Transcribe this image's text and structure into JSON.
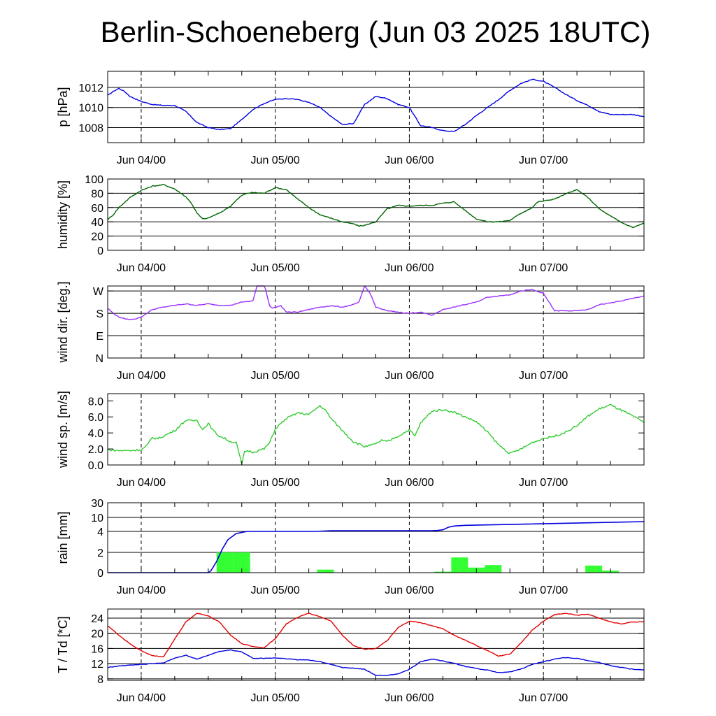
{
  "title": "Berlin-Schoeneberg (Jun 03 2025 18UTC)",
  "x_tick_labels": [
    "Jun 04/00",
    "Jun 05/00",
    "Jun 06/00",
    "Jun 07/00"
  ],
  "chart_data": [
    {
      "type": "line",
      "ylabel": "p [hPa]",
      "xlim": [
        0,
        96
      ],
      "ylim": [
        1006.5,
        1013.6
      ],
      "yticks": [
        1008,
        1010,
        1012
      ],
      "ytick_labels": [
        "1008",
        "1010",
        "1012"
      ],
      "grid": true,
      "color": "#0000e0",
      "noise": 0.08,
      "series": [
        {
          "x": [
            0,
            1,
            2,
            3,
            4,
            6,
            8,
            10,
            12,
            14,
            16,
            18,
            20,
            22,
            24,
            26,
            28,
            30,
            32,
            34,
            36,
            38,
            40,
            42,
            44,
            46,
            48,
            50,
            52,
            54,
            56,
            58,
            60,
            62,
            64,
            66,
            68,
            70,
            72,
            74,
            76,
            78,
            80,
            82,
            84,
            86,
            88,
            90,
            92,
            94,
            96
          ],
          "y": [
            1011.2,
            1011.6,
            1011.9,
            1011.6,
            1011.1,
            1010.6,
            1010.3,
            1010.2,
            1010.2,
            1009.6,
            1008.5,
            1008.0,
            1007.8,
            1007.9,
            1008.8,
            1009.8,
            1010.4,
            1010.8,
            1010.9,
            1010.8,
            1010.5,
            1010.0,
            1009.1,
            1008.3,
            1008.4,
            1010.3,
            1011.1,
            1010.9,
            1010.3,
            1010.0,
            1008.2,
            1008.0,
            1007.7,
            1007.6,
            1008.3,
            1009.2,
            1010.0,
            1010.8,
            1011.7,
            1012.4,
            1012.8,
            1012.6,
            1012.0,
            1011.3,
            1010.7,
            1010.2,
            1009.6,
            1009.3,
            1009.3,
            1009.3,
            1009.1
          ]
        }
      ]
    },
    {
      "type": "line",
      "ylabel": "humidity [%]",
      "xlim": [
        0,
        96
      ],
      "ylim": [
        0,
        100
      ],
      "yticks": [
        0,
        20,
        40,
        60,
        80,
        100
      ],
      "ytick_labels": [
        "0",
        "20",
        "40",
        "60",
        "80",
        "100"
      ],
      "grid": true,
      "color": "#006400",
      "noise": 1.2,
      "series": [
        {
          "x": [
            0,
            1,
            2,
            4,
            6,
            8,
            10,
            12,
            14,
            15,
            16,
            17,
            18,
            19,
            20,
            22,
            23,
            24,
            25,
            26,
            28,
            29,
            30,
            32,
            34,
            36,
            38,
            40,
            42,
            44,
            45,
            46,
            48,
            50,
            52,
            54,
            56,
            58,
            60,
            62,
            64,
            66,
            68,
            70,
            72,
            74,
            76,
            77,
            78,
            80,
            82,
            84,
            86,
            88,
            90,
            92,
            94,
            96
          ],
          "y": [
            43,
            50,
            60,
            74,
            84,
            90,
            92,
            86,
            75,
            66,
            52,
            44,
            45,
            49,
            52,
            62,
            70,
            77,
            80,
            81,
            80,
            84,
            88,
            85,
            72,
            60,
            50,
            45,
            40,
            37,
            34,
            35,
            40,
            58,
            63,
            62,
            63,
            63,
            66,
            68,
            56,
            44,
            40,
            40,
            42,
            52,
            60,
            68,
            69,
            72,
            79,
            85,
            74,
            58,
            48,
            39,
            32,
            38
          ]
        }
      ]
    },
    {
      "type": "line",
      "ylabel": "wind dir. [deg.]",
      "xlim": [
        0,
        96
      ],
      "ylim": [
        0,
        290
      ],
      "yticks": [
        0,
        90,
        180,
        270
      ],
      "ytick_labels": [
        "N",
        "E",
        "S",
        "W"
      ],
      "grid": true,
      "color": "#9b30ff",
      "noise": 3,
      "series": [
        {
          "x": [
            0,
            1,
            2,
            3,
            4,
            5,
            6,
            7,
            8,
            10,
            12,
            14,
            16,
            18,
            20,
            22,
            24,
            26,
            27,
            28,
            29,
            29.5,
            30,
            31,
            32,
            34,
            36,
            38,
            40,
            42,
            44,
            45,
            46,
            47,
            48,
            50,
            52,
            54,
            56,
            58,
            60,
            62,
            64,
            66,
            68,
            70,
            72,
            74,
            76,
            78,
            80,
            82,
            84,
            86,
            88,
            90,
            92,
            94,
            96
          ],
          "y": [
            200,
            180,
            165,
            158,
            155,
            158,
            165,
            180,
            195,
            205,
            212,
            218,
            212,
            218,
            212,
            212,
            225,
            230,
            310,
            300,
            210,
            200,
            205,
            210,
            185,
            185,
            195,
            205,
            210,
            205,
            215,
            225,
            290,
            260,
            205,
            190,
            185,
            180,
            185,
            172,
            195,
            205,
            215,
            225,
            245,
            250,
            255,
            270,
            275,
            260,
            190,
            190,
            190,
            195,
            215,
            222,
            230,
            240,
            250
          ]
        }
      ]
    },
    {
      "type": "line",
      "ylabel": "wind sp. [m/s]",
      "xlim": [
        0,
        96
      ],
      "ylim": [
        0,
        8.9
      ],
      "yticks": [
        0,
        2,
        4,
        6,
        8
      ],
      "ytick_labels": [
        "0.0",
        "2.0",
        "4.0",
        "6.0",
        "8.0"
      ],
      "grid": false,
      "color": "#33cc33",
      "noise": 0.25,
      "series": [
        {
          "x": [
            0,
            2,
            4,
            6,
            7,
            8,
            9,
            10,
            12,
            14,
            15,
            16,
            17,
            18,
            19,
            20,
            21,
            22,
            23,
            24,
            24.5,
            25,
            26,
            28,
            29,
            30,
            31,
            32,
            34,
            36,
            38,
            39,
            40,
            42,
            44,
            46,
            48,
            49,
            50,
            52,
            54,
            55,
            56,
            58,
            60,
            62,
            64,
            66,
            68,
            70,
            72,
            74,
            76,
            78,
            80,
            82,
            84,
            86,
            88,
            90,
            92,
            94,
            96
          ],
          "y": [
            1.9,
            1.8,
            1.8,
            1.9,
            2.4,
            3.4,
            3.3,
            3.6,
            4.3,
            5.6,
            5.5,
            5.6,
            4.4,
            5.2,
            4.2,
            3.6,
            3.3,
            2.9,
            2.8,
            0.1,
            1.6,
            1.8,
            1.6,
            2.0,
            2.8,
            4.5,
            5.2,
            5.8,
            6.5,
            6.3,
            7.4,
            6.8,
            5.8,
            4.3,
            2.9,
            2.3,
            2.6,
            3.1,
            2.9,
            3.6,
            4.4,
            3.6,
            5.2,
            6.7,
            6.9,
            6.6,
            6.0,
            5.4,
            4.1,
            2.5,
            1.4,
            2.0,
            2.8,
            3.3,
            3.6,
            4.1,
            4.9,
            6.1,
            7.0,
            7.5,
            6.8,
            6.1,
            5.3
          ]
        }
      ]
    },
    {
      "type": "bar",
      "ylabel": "rain [mm]",
      "xlim": [
        0,
        96
      ],
      "scale": "piecewise",
      "yticks": [
        0,
        2,
        4,
        10,
        30
      ],
      "ytick_labels": [
        "0",
        "2",
        "4",
        "10",
        "30"
      ],
      "grid": true,
      "bar_color": "#33ff33",
      "line_color": "#0000e0",
      "bars": {
        "x_start": [
          19.5,
          22.5,
          37.5,
          58.5,
          61.5,
          64.5,
          67.5,
          85.5,
          88.5
        ],
        "x_end": [
          22.5,
          25.5,
          40.5,
          61.5,
          64.5,
          67.5,
          70.5,
          88.5,
          91.5
        ],
        "values": [
          2.0,
          2.0,
          0.3,
          0.1,
          1.5,
          0.5,
          0.75,
          0.7,
          0.2
        ]
      },
      "cumulative": {
        "x": [
          0,
          18,
          18.5,
          19.5,
          20.5,
          21.5,
          23,
          25,
          26,
          37,
          40,
          58,
          59,
          60,
          61,
          62,
          64,
          96
        ],
        "y": [
          0,
          0,
          0.2,
          1.1,
          2.3,
          3.2,
          3.8,
          4.0,
          4.0,
          4.0,
          4.3,
          4.3,
          4.4,
          4.7,
          5.8,
          6.3,
          6.6,
          8.2
        ]
      }
    },
    {
      "type": "line",
      "ylabel": "T / Td [*C]",
      "xlim": [
        0,
        96
      ],
      "ylim": [
        7.6,
        26.4
      ],
      "yticks": [
        8,
        12,
        16,
        20,
        24
      ],
      "ytick_labels": [
        "8",
        "12",
        "16",
        "20",
        "24"
      ],
      "grid": true,
      "noise": 0.15,
      "series": [
        {
          "color": "#e00000",
          "x": [
            0,
            2,
            4,
            6,
            8,
            10,
            12,
            14,
            16,
            18,
            20,
            22,
            24,
            26,
            28,
            30,
            32,
            34,
            36,
            38,
            40,
            42,
            44,
            46,
            48,
            50,
            52,
            54,
            56,
            58,
            60,
            62,
            64,
            66,
            68,
            70,
            72,
            74,
            76,
            78,
            80,
            82,
            84,
            86,
            88,
            90,
            92,
            94,
            96
          ],
          "y": [
            22.0,
            19.5,
            17.2,
            15.4,
            14.1,
            13.8,
            18.5,
            23.0,
            25.3,
            24.6,
            23.0,
            19.5,
            17.3,
            16.5,
            16.2,
            18.6,
            22.5,
            24.2,
            25.3,
            24.4,
            23.2,
            19.5,
            16.8,
            15.8,
            16.0,
            18.0,
            21.5,
            23.2,
            22.8,
            22.0,
            21.2,
            19.5,
            18.2,
            16.8,
            15.4,
            14.0,
            14.5,
            17.5,
            20.8,
            23.2,
            24.9,
            25.3,
            24.8,
            25.0,
            24.0,
            23.0,
            22.5,
            23.0,
            23.0
          ]
        },
        {
          "color": "#0000e0",
          "x": [
            0,
            2,
            4,
            6,
            8,
            10,
            12,
            14,
            16,
            18,
            20,
            22,
            24,
            26,
            28,
            30,
            32,
            34,
            36,
            38,
            40,
            42,
            44,
            46,
            48,
            50,
            52,
            54,
            56,
            58,
            60,
            62,
            64,
            66,
            68,
            70,
            72,
            74,
            76,
            78,
            80,
            82,
            84,
            86,
            88,
            90,
            92,
            94,
            96
          ],
          "y": [
            11.0,
            11.4,
            11.6,
            11.8,
            12.0,
            12.2,
            13.5,
            14.2,
            13.2,
            14.2,
            15.2,
            15.6,
            15.1,
            13.4,
            13.4,
            13.5,
            13.3,
            13.0,
            13.0,
            12.5,
            11.8,
            11.0,
            10.8,
            10.5,
            8.9,
            8.9,
            9.3,
            10.5,
            12.5,
            13.2,
            12.7,
            12.1,
            11.3,
            10.7,
            10.3,
            9.6,
            9.8,
            10.6,
            11.8,
            12.5,
            13.2,
            13.6,
            13.4,
            12.8,
            12.3,
            11.5,
            11.0,
            10.5,
            10.4
          ]
        }
      ]
    }
  ]
}
